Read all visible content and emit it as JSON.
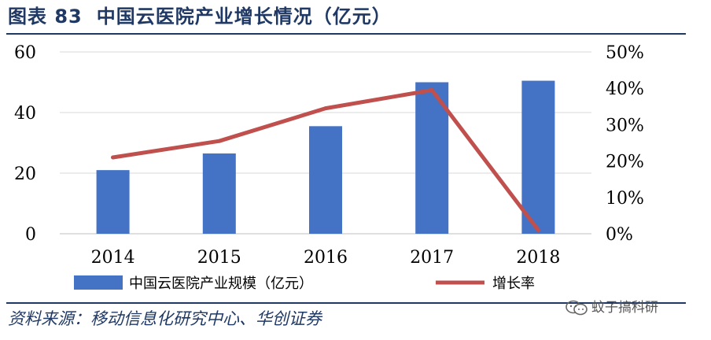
{
  "header": {
    "figure_number": "图表 83",
    "title": "中国云医院产业增长情况（亿元）"
  },
  "footer": {
    "source": "资料来源：移动信息化研究中心、华创证券",
    "watermark": "蚊子搞科研"
  },
  "colors": {
    "title": "#1f3864",
    "bar": "#4472c4",
    "line": "#c0504d",
    "grid": "#d9d9d9"
  },
  "chart_data": {
    "type": "bar",
    "categories": [
      "2014",
      "2015",
      "2016",
      "2017",
      "2018"
    ],
    "series": [
      {
        "name": "中国云医院产业规模（亿元）",
        "type": "bar",
        "axis": "left",
        "values": [
          21,
          26.5,
          35.5,
          50,
          50.5
        ]
      },
      {
        "name": "增长率",
        "type": "line",
        "axis": "right",
        "values": [
          21,
          25.5,
          34.5,
          39.5,
          1
        ]
      }
    ],
    "y_left": {
      "ylim": [
        0,
        60
      ],
      "ticks": [
        "0",
        "20",
        "40",
        "60"
      ],
      "tick_values": [
        0,
        20,
        40,
        60
      ]
    },
    "y_right": {
      "ylim": [
        0,
        50
      ],
      "ticks": [
        "0%",
        "10%",
        "20%",
        "30%",
        "40%",
        "50%"
      ],
      "tick_values": [
        0,
        10,
        20,
        30,
        40,
        50
      ]
    },
    "grid": true,
    "legend_position": "bottom"
  }
}
